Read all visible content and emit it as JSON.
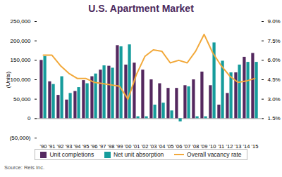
{
  "chart_data": {
    "type": "bar",
    "title": "U.S. Apartment Market",
    "ylabel": "(Units)",
    "source": "Source: Reis Inc.",
    "categories": [
      "'90",
      "'91",
      "'92",
      "'93",
      "'94",
      "'95",
      "'96",
      "'97",
      "'98",
      "'99",
      "'00",
      "'01",
      "'02",
      "'03",
      "'04",
      "'05",
      "'06",
      "'07",
      "'08",
      "'09",
      "'10",
      "'11",
      "'12",
      "'13",
      "'14",
      "'15"
    ],
    "series": [
      {
        "name": "Unit completions",
        "type": "bar",
        "color": "#54285f",
        "values": [
          150000,
          95000,
          60000,
          48000,
          70000,
          98000,
          108000,
          125000,
          135000,
          188000,
          138000,
          143000,
          125000,
          100000,
          90000,
          78000,
          78000,
          85000,
          100000,
          120000,
          85000,
          35000,
          65000,
          118000,
          158000,
          168000
        ]
      },
      {
        "name": "Net unit absorption",
        "type": "bar",
        "color": "#169c9c",
        "values": [
          160000,
          88000,
          108000,
          65000,
          80000,
          90000,
          115000,
          136000,
          130000,
          185000,
          190000,
          5000,
          5000,
          35000,
          40000,
          20000,
          -8000,
          82000,
          5000,
          5000,
          195000,
          148000,
          118000,
          138000,
          145000,
          145000
        ]
      },
      {
        "name": "Overall vacancy rate",
        "type": "line",
        "axis": "y2",
        "color": "#f2a93b",
        "values": [
          6.4,
          6.4,
          5.6,
          5.0,
          4.6,
          4.6,
          4.3,
          4.2,
          4.1,
          4.0,
          3.0,
          4.9,
          6.3,
          6.8,
          6.7,
          5.8,
          6.0,
          5.8,
          6.7,
          8.0,
          6.6,
          5.6,
          4.8,
          4.3,
          4.4,
          4.6
        ]
      }
    ],
    "ylim": [
      -50000,
      250000
    ],
    "yticks": [
      {
        "value": -50000,
        "label": "(50,000)"
      },
      0,
      {
        "value": 50000,
        "label": "50,000"
      },
      {
        "value": 100000,
        "label": "100,000"
      },
      {
        "value": 150000,
        "label": "150,000"
      },
      {
        "value": 200000,
        "label": "200,000"
      },
      {
        "value": 250000,
        "label": "250,000"
      }
    ],
    "y2lim": [
      0,
      9.0
    ],
    "y2ticks": [
      {
        "value": 1.5,
        "label": "1.5%"
      },
      {
        "value": 3.0,
        "label": "3.0%"
      },
      {
        "value": 4.5,
        "label": "4.5%"
      },
      {
        "value": 6.0,
        "label": "6.0%"
      },
      {
        "value": 7.5,
        "label": "7.5%"
      },
      {
        "value": 9.0,
        "label": "9.0%"
      }
    ],
    "grid": false,
    "legend": "bottom"
  }
}
